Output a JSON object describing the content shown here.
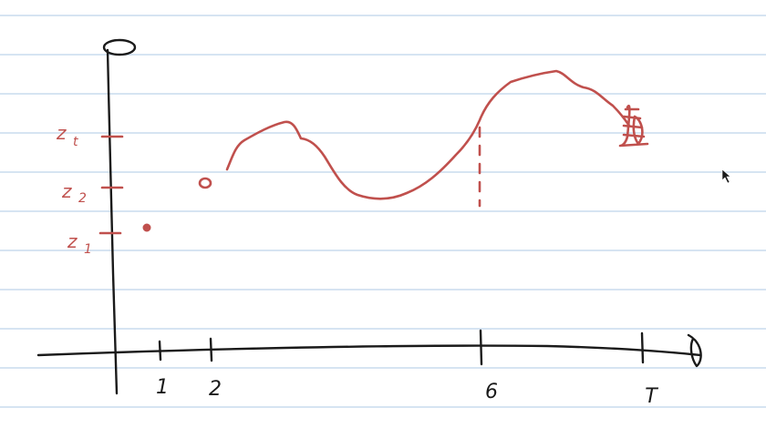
{
  "axes": {
    "y_top_label": "0"
  },
  "x_ticks": [
    {
      "label": "1"
    },
    {
      "label": "2"
    },
    {
      "label": "6"
    },
    {
      "label": "T"
    }
  ],
  "y_ticks": [
    {
      "base": "z",
      "sub": "t"
    },
    {
      "base": "z",
      "sub": "2"
    },
    {
      "base": "z",
      "sub": "1"
    }
  ],
  "colors": {
    "ink": "#1a1a1a",
    "annotation": "#c0504d",
    "ruled_line": "#c9dbee"
  }
}
